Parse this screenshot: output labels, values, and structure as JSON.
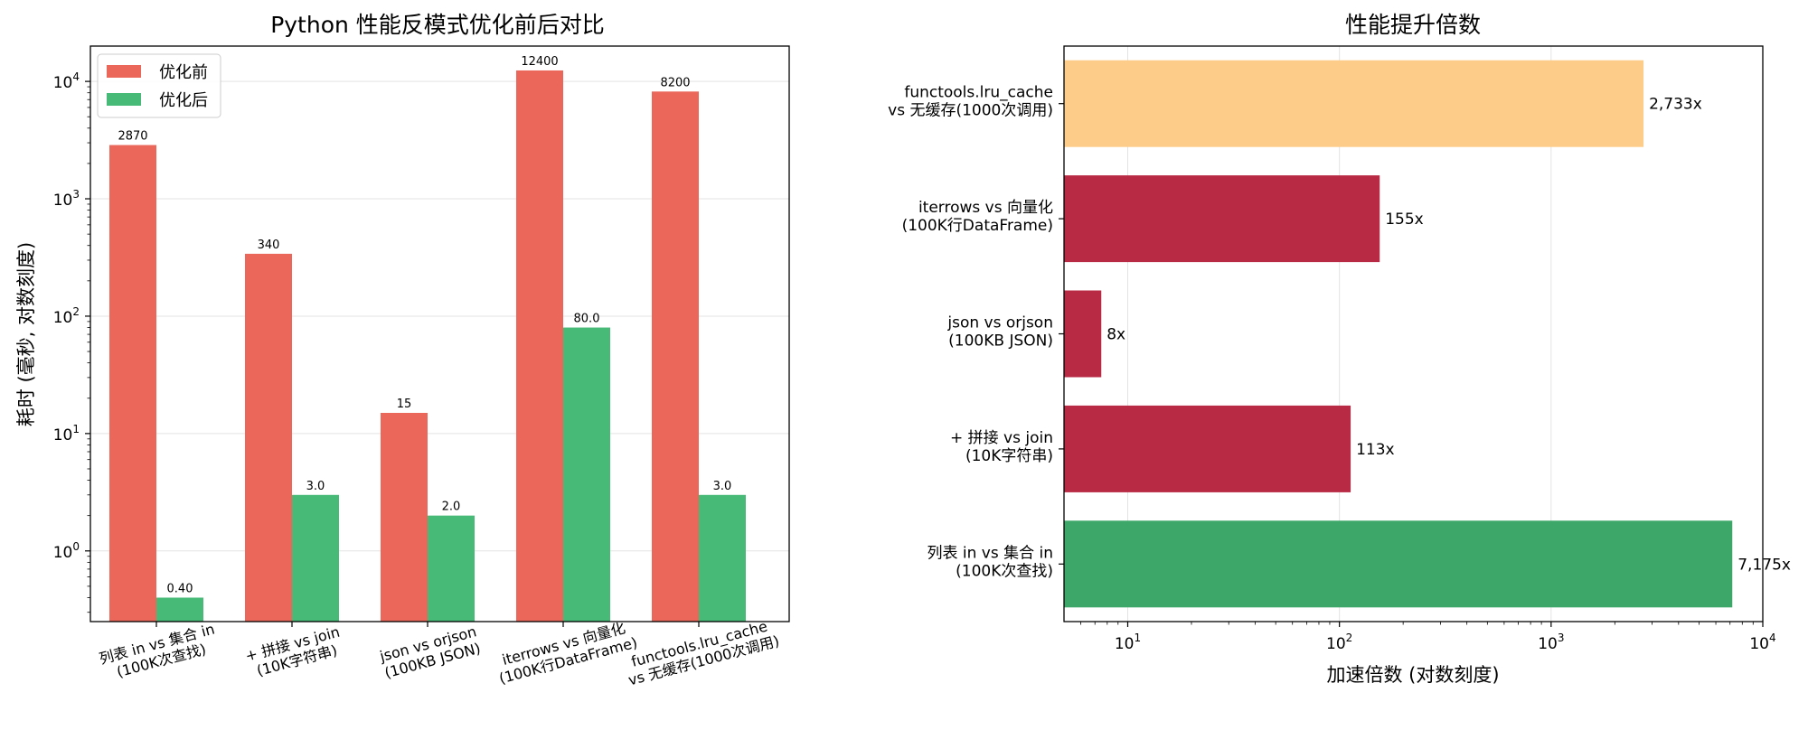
{
  "chart_data": [
    {
      "type": "bar",
      "title": "Python 性能反模式优化前后对比",
      "ylabel": "耗时 (毫秒, 对数刻度)",
      "yscale": "log",
      "ylim": [
        0.25,
        20000
      ],
      "yticks": [
        1,
        10,
        100,
        1000,
        10000
      ],
      "yticklabels": [
        "10^0",
        "10^1",
        "10^2",
        "10^3",
        "10^4"
      ],
      "grid": "y",
      "legend_position": "top-left",
      "categories": [
        "列表 in vs 集合 in\n(100K次查找)",
        "+ 拼接 vs join\n(10K字符串)",
        "json vs orjson\n(100KB JSON)",
        "iterrows vs 向量化\n(100K行DataFrame)",
        "functools.lru_cache\nvs 无缓存(1000次调用)"
      ],
      "series": [
        {
          "name": "优化前",
          "color": "#eb6759",
          "values": [
            2870,
            340,
            15,
            12400,
            8200
          ],
          "labels": [
            "2870",
            "340",
            "15",
            "12400",
            "8200"
          ]
        },
        {
          "name": "优化后",
          "color": "#48ba78",
          "values": [
            0.4,
            3.0,
            2.0,
            80.0,
            3.0
          ],
          "labels": [
            "0.40",
            "3.0",
            "2.0",
            "80.0",
            "3.0"
          ]
        }
      ]
    },
    {
      "type": "bar",
      "orientation": "horizontal",
      "title": "性能提升倍数",
      "xlabel": "加速倍数 (对数刻度)",
      "xscale": "log",
      "xlim": [
        5,
        10000
      ],
      "xticks": [
        10,
        100,
        1000,
        10000
      ],
      "xticklabels": [
        "10^1",
        "10^2",
        "10^3",
        "10^4"
      ],
      "grid": "x",
      "categories": [
        "functools.lru_cache\nvs 无缓存(1000次调用)",
        "iterrows vs 向量化\n(100K行DataFrame)",
        "json vs orjson\n(100KB JSON)",
        "+ 拼接 vs join\n(10K字符串)",
        "列表 in vs 集合 in\n(100K次查找)"
      ],
      "values": [
        2733,
        155,
        7.5,
        113,
        7175
      ],
      "labels": [
        "2,733x",
        "155x",
        "8x",
        "113x",
        "7,175x"
      ],
      "colors": [
        "#fdcc88",
        "#b82944",
        "#b82944",
        "#b82944",
        "#3ca768"
      ]
    }
  ]
}
